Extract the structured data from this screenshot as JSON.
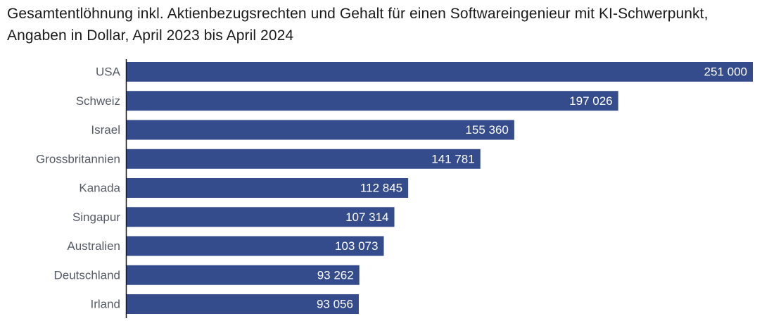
{
  "chart_data": {
    "type": "bar",
    "orientation": "horizontal",
    "title": "Gesamtentlöhnung inkl. Aktienbezugsrechten und Gehalt für einen Softwareingenieur mit KI-Schwerpunkt, Angaben in Dollar, April 2023 bis April 2024",
    "categories": [
      "USA",
      "Schweiz",
      "Israel",
      "Grossbritannien",
      "Kanada",
      "Singapur",
      "Australien",
      "Deutschland",
      "Irland"
    ],
    "values": [
      251000,
      197026,
      155360,
      141781,
      112845,
      107314,
      103073,
      93262,
      93056
    ],
    "value_labels": [
      "251 000",
      "197 026",
      "155 360",
      "141 781",
      "112 845",
      "107 314",
      "103 073",
      "93 262",
      "93 056"
    ],
    "xlim": [
      0,
      251000
    ],
    "grid": false,
    "bar_color": "#344b8c",
    "axis_color": "#1a1a1a"
  }
}
